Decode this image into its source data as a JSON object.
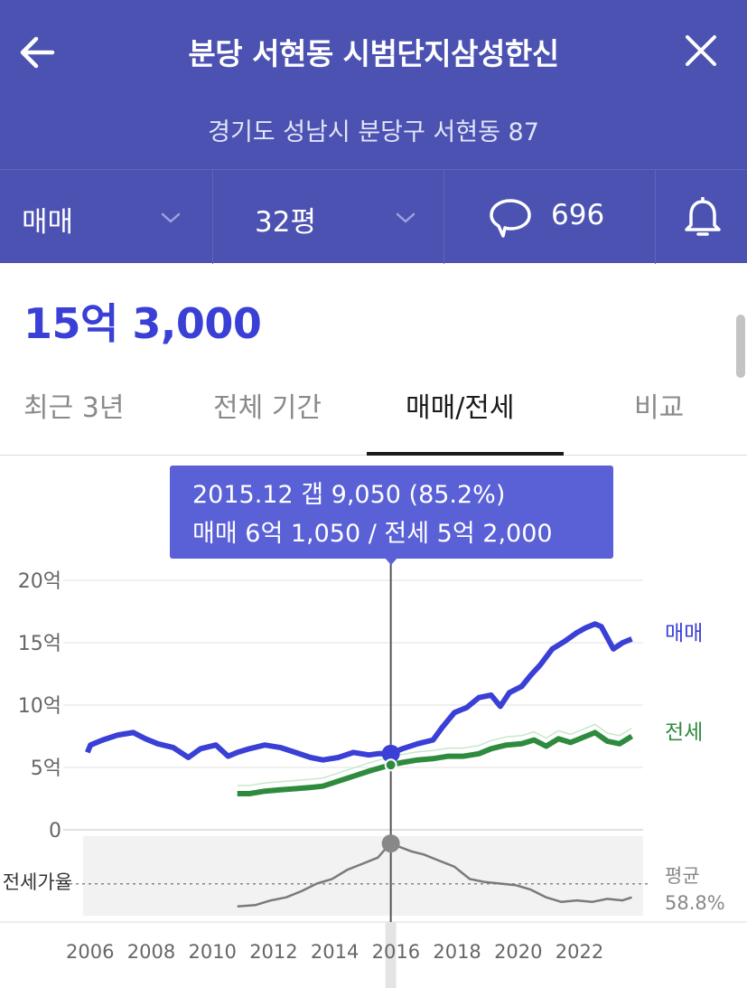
{
  "header": {
    "title": "분당 서현동 시범단지삼성한신",
    "address": "경기도 성남시 분당구 서현동 87",
    "deal_type": "매매",
    "size": "32평",
    "comment_count": "696"
  },
  "price": "15억 3,000",
  "tabs": [
    {
      "label": "최근 3년",
      "active": false
    },
    {
      "label": "전체 기간",
      "active": false
    },
    {
      "label": "매매/전세",
      "active": true
    },
    {
      "label": "비교",
      "active": false
    }
  ],
  "tooltip": {
    "line1": "2015.12  갭 9,050 (85.2%)",
    "line2": "매매 6억 1,050 / 전세 5억 2,000"
  },
  "colors": {
    "header_bg": "#4c52b1",
    "accent": "#3a3fd6",
    "sale": "#3a3fd6",
    "jeonse": "#2e8b3e",
    "ratio": "#7a7a7a"
  },
  "chart_data": {
    "type": "line",
    "x_unit": "year",
    "xlim": [
      2005.8,
      2024.2
    ],
    "ylim": [
      0,
      20
    ],
    "y_unit": "억",
    "y_ticks": [
      "20억",
      "15억",
      "10억",
      "5억",
      "0"
    ],
    "x_ticks": [
      "2006",
      "2008",
      "2010",
      "2012",
      "2014",
      "2016",
      "2018",
      "2020",
      "2022"
    ],
    "grid": true,
    "legend_placement": "right-end-labels",
    "series": [
      {
        "name": "매매",
        "x": [
          2006.0,
          2006.1,
          2006.5,
          2007.0,
          2007.5,
          2007.9,
          2008.3,
          2008.8,
          2009.3,
          2009.7,
          2010.2,
          2010.6,
          2010.9,
          2011.3,
          2011.8,
          2012.3,
          2012.8,
          2013.3,
          2013.7,
          2014.2,
          2014.7,
          2015.2,
          2015.5,
          2015.9,
          2016.3,
          2016.8,
          2017.3,
          2017.6,
          2018.0,
          2018.4,
          2018.8,
          2019.2,
          2019.5,
          2019.8,
          2020.2,
          2020.5,
          2020.8,
          2021.2,
          2021.6,
          2022.0,
          2022.3,
          2022.6,
          2022.8,
          2023.2,
          2023.5,
          2023.8
        ],
        "y": [
          6.2,
          6.8,
          7.2,
          7.6,
          7.8,
          7.3,
          6.9,
          6.6,
          5.8,
          6.5,
          6.8,
          5.9,
          6.2,
          6.5,
          6.8,
          6.6,
          6.2,
          5.8,
          5.6,
          5.8,
          6.2,
          6.0,
          6.1,
          6.1,
          6.5,
          6.9,
          7.2,
          8.2,
          9.4,
          9.8,
          10.6,
          10.8,
          9.9,
          11.0,
          11.5,
          12.4,
          13.2,
          14.5,
          15.1,
          15.8,
          16.2,
          16.5,
          16.3,
          14.5,
          15.0,
          15.3
        ]
      },
      {
        "name": "전세",
        "x": [
          2010.9,
          2011.3,
          2011.8,
          2012.3,
          2012.8,
          2013.3,
          2013.7,
          2014.2,
          2014.7,
          2015.2,
          2015.9,
          2016.3,
          2016.8,
          2017.3,
          2017.8,
          2018.3,
          2018.8,
          2019.2,
          2019.7,
          2020.2,
          2020.6,
          2021.0,
          2021.4,
          2021.8,
          2022.2,
          2022.6,
          2023.0,
          2023.4,
          2023.8
        ],
        "y": [
          2.9,
          2.9,
          3.1,
          3.2,
          3.3,
          3.4,
          3.5,
          3.9,
          4.3,
          4.7,
          5.2,
          5.4,
          5.6,
          5.7,
          5.9,
          5.9,
          6.1,
          6.5,
          6.8,
          6.9,
          7.2,
          6.7,
          7.3,
          7.0,
          7.4,
          7.8,
          7.1,
          6.9,
          7.5
        ]
      }
    ],
    "ratio_series": {
      "name": "전세가율",
      "average_label": "평균",
      "average_value": "58.8%",
      "average": 58.8,
      "x": [
        2010.9,
        2011.5,
        2012.0,
        2012.5,
        2013.0,
        2013.5,
        2014.0,
        2014.5,
        2015.0,
        2015.5,
        2015.9,
        2016.2,
        2016.6,
        2017.0,
        2017.5,
        2018.0,
        2018.5,
        2019.0,
        2019.5,
        2020.0,
        2020.5,
        2021.0,
        2021.5,
        2022.0,
        2022.5,
        2023.0,
        2023.5,
        2023.8
      ],
      "y": [
        44,
        45,
        48,
        50,
        54,
        59,
        62,
        68,
        72,
        76,
        85.2,
        83,
        80,
        78,
        74,
        70,
        62,
        60,
        59,
        58,
        55,
        50,
        47,
        48,
        47,
        49,
        48,
        50
      ]
    },
    "highlight": {
      "x": 2015.92,
      "sale": 6.1,
      "jeonse": 5.2,
      "ratio": 85.2
    }
  }
}
